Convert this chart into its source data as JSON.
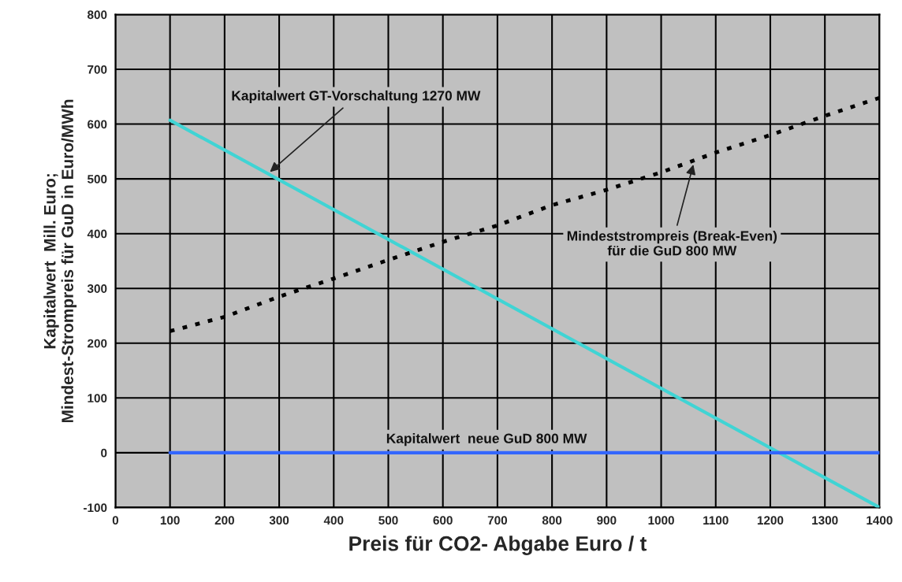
{
  "chart_data": {
    "type": "line",
    "xlabel": "Preis für CO2- Abgabe Euro / t",
    "ylabel": "Kapitalwert  Mill. Euro;\nMindest-Strompreis für GuD in Euro/MWh",
    "series": [
      {
        "color": "#40d4d4",
        "line_style": "solid",
        "x": [
          100,
          1400
        ],
        "values": [
          607,
          -100
        ]
      },
      {
        "color": "#000000",
        "line_style": "dotted",
        "x": [
          100,
          200,
          300,
          400,
          500,
          600,
          700,
          800,
          900,
          1000,
          1100,
          1200,
          1300,
          1400
        ],
        "values": [
          222,
          248,
          285,
          318,
          352,
          385,
          415,
          452,
          480,
          512,
          548,
          580,
          615,
          648
        ]
      },
      {
        "color": "#3366ff",
        "line_style": "solid",
        "x": [
          100,
          1400
        ],
        "values": [
          0,
          0
        ]
      }
    ],
    "annotations": [
      {
        "text": "Kapitalwert GT-Vorschaltung 1270 MW",
        "x": 280,
        "y": 510
      },
      {
        "text": "Mindeststrompreis (Break-Even)\nfür die GuD 800 MW",
        "x": 1060,
        "y": 530
      },
      {
        "text": "Kapitalwert  neue GuD 800 MW",
        "x": 680,
        "y": 0
      }
    ],
    "xlim": [
      0,
      1400
    ],
    "ylim": [
      -100,
      800
    ],
    "xticks": [
      0,
      100,
      200,
      300,
      400,
      500,
      600,
      700,
      800,
      900,
      1000,
      1100,
      1200,
      1300,
      1400
    ],
    "yticks": [
      -100,
      0,
      100,
      200,
      300,
      400,
      500,
      600,
      700,
      800
    ],
    "grid": true,
    "legend": false,
    "marker": "none"
  }
}
